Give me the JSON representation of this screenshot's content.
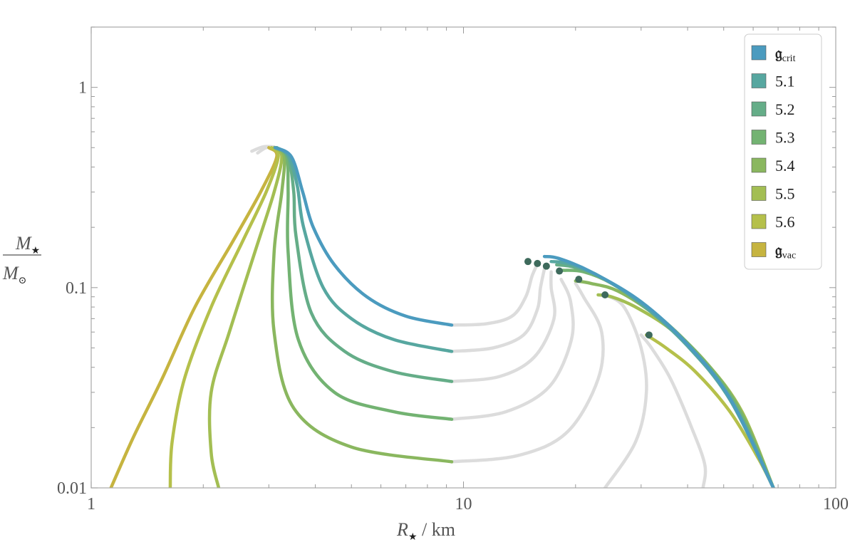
{
  "chart_data": {
    "type": "line",
    "title": "",
    "xlabel": {
      "symbol": "R",
      "sub": "★",
      "unit": " / km"
    },
    "ylabel": {
      "num": "M",
      "num_sub": "★",
      "den": "M",
      "den_sub": "⊙"
    },
    "xscale": "log",
    "yscale": "log",
    "xlim": [
      1,
      100
    ],
    "ylim": [
      0.01,
      2
    ],
    "grid": false,
    "legend_position": "top-right",
    "x_ticks": [
      {
        "value": 1,
        "label": "1"
      },
      {
        "value": 10,
        "label": "10"
      },
      {
        "value": 100,
        "label": "100"
      }
    ],
    "y_ticks": [
      {
        "value": 0.01,
        "label": "0.01"
      },
      {
        "value": 0.1,
        "label": "0.1"
      },
      {
        "value": 1,
        "label": "1"
      }
    ],
    "unstable_color": "#dcdcdc",
    "marker_color": "#3e6a5c",
    "series": [
      {
        "name": "crit",
        "name_prefix": "𝔤",
        "color": "#4b9bbf",
        "stable_left": [
          [
            3.12,
            0.5
          ],
          [
            3.45,
            0.45
          ],
          [
            3.7,
            0.3
          ],
          [
            3.95,
            0.2
          ],
          [
            4.5,
            0.13
          ],
          [
            5.5,
            0.09
          ],
          [
            7,
            0.072
          ],
          [
            9.3,
            0.065
          ]
        ],
        "unstable_mid": [
          [
            9.3,
            0.065
          ],
          [
            11.5,
            0.066
          ],
          [
            13.5,
            0.072
          ],
          [
            14.7,
            0.09
          ],
          [
            15.3,
            0.115
          ],
          [
            15.9,
            0.134
          ]
        ],
        "stable_right": [
          [
            16.5,
            0.143
          ],
          [
            18,
            0.14
          ],
          [
            22,
            0.12
          ],
          [
            30,
            0.085
          ],
          [
            40,
            0.052
          ],
          [
            52,
            0.028
          ],
          [
            68,
            0.01
          ]
        ],
        "marker": [
          14.9,
          0.135
        ]
      },
      {
        "name": "5.1",
        "color": "#57a7a0",
        "stable_left": [
          [
            3.15,
            0.5
          ],
          [
            3.4,
            0.45
          ],
          [
            3.58,
            0.32
          ],
          [
            3.72,
            0.2
          ],
          [
            4.2,
            0.1
          ],
          [
            5,
            0.07
          ],
          [
            6.5,
            0.055
          ],
          [
            9.3,
            0.048
          ]
        ],
        "unstable_mid": [
          [
            9.3,
            0.048
          ],
          [
            12,
            0.05
          ],
          [
            14.5,
            0.058
          ],
          [
            15.8,
            0.078
          ],
          [
            16.1,
            0.1
          ],
          [
            16.5,
            0.124
          ]
        ],
        "stable_right": [
          [
            17.2,
            0.135
          ],
          [
            19,
            0.132
          ],
          [
            23,
            0.115
          ],
          [
            30,
            0.083
          ],
          [
            40,
            0.051
          ],
          [
            52,
            0.0275
          ],
          [
            68,
            0.01
          ]
        ],
        "marker": [
          15.8,
          0.132
        ]
      },
      {
        "name": "5.2",
        "color": "#65ad88",
        "stable_left": [
          [
            3.15,
            0.5
          ],
          [
            3.38,
            0.45
          ],
          [
            3.5,
            0.3
          ],
          [
            3.55,
            0.18
          ],
          [
            3.9,
            0.075
          ],
          [
            4.8,
            0.048
          ],
          [
            6.5,
            0.038
          ],
          [
            9.3,
            0.034
          ]
        ],
        "unstable_mid": [
          [
            9.3,
            0.034
          ],
          [
            12.5,
            0.036
          ],
          [
            15.5,
            0.045
          ],
          [
            17.5,
            0.07
          ],
          [
            17.2,
            0.1
          ],
          [
            17.2,
            0.12
          ]
        ],
        "stable_right": [
          [
            17.8,
            0.13
          ],
          [
            20,
            0.126
          ],
          [
            24,
            0.11
          ],
          [
            31,
            0.08
          ],
          [
            41,
            0.049
          ],
          [
            53,
            0.0265
          ],
          [
            68,
            0.01
          ]
        ],
        "marker": [
          16.7,
          0.128
        ]
      },
      {
        "name": "5.3",
        "color": "#73b372",
        "stable_left": [
          [
            3.15,
            0.5
          ],
          [
            3.35,
            0.45
          ],
          [
            3.38,
            0.3
          ],
          [
            3.38,
            0.15
          ],
          [
            3.6,
            0.055
          ],
          [
            4.5,
            0.03
          ],
          [
            6.5,
            0.024
          ],
          [
            9.3,
            0.022
          ]
        ],
        "unstable_mid": [
          [
            9.3,
            0.022
          ],
          [
            13,
            0.024
          ],
          [
            17,
            0.032
          ],
          [
            19.5,
            0.055
          ],
          [
            19.4,
            0.085
          ],
          [
            18.3,
            0.11
          ]
        ],
        "stable_right": [
          [
            18.5,
            0.122
          ],
          [
            21,
            0.12
          ],
          [
            25,
            0.105
          ],
          [
            32,
            0.077
          ],
          [
            42,
            0.048
          ],
          [
            54,
            0.026
          ],
          [
            68,
            0.01
          ]
        ],
        "marker": [
          18.1,
          0.121
        ]
      },
      {
        "name": "5.4",
        "color": "#8ab75f",
        "stable_left": [
          [
            3.12,
            0.5
          ],
          [
            3.3,
            0.45
          ],
          [
            3.25,
            0.3
          ],
          [
            3.1,
            0.15
          ],
          [
            3.1,
            0.06
          ],
          [
            3.5,
            0.025
          ],
          [
            5,
            0.016
          ],
          [
            9.3,
            0.0135
          ]
        ],
        "unstable_mid": [
          [
            9.3,
            0.0135
          ],
          [
            14,
            0.0145
          ],
          [
            19,
            0.019
          ],
          [
            23,
            0.035
          ],
          [
            23.5,
            0.06
          ],
          [
            21,
            0.09
          ],
          [
            20,
            0.105
          ]
        ],
        "stable_right": [
          [
            20,
            0.108
          ],
          [
            22,
            0.105
          ],
          [
            26,
            0.096
          ],
          [
            33,
            0.072
          ],
          [
            43,
            0.046
          ],
          [
            55,
            0.025
          ],
          [
            68,
            0.01
          ]
        ],
        "marker": [
          20.4,
          0.11
        ]
      },
      {
        "name": "5.5",
        "color": "#a3be53",
        "stable_left": [
          [
            3.1,
            0.5
          ],
          [
            3.25,
            0.45
          ],
          [
            3.1,
            0.3
          ],
          [
            2.75,
            0.15
          ],
          [
            2.35,
            0.06
          ],
          [
            2.1,
            0.03
          ],
          [
            2.1,
            0.015
          ],
          [
            2.2,
            0.01
          ]
        ],
        "unstable_mid": [
          [
            24,
            0.01
          ],
          [
            29,
            0.017
          ],
          [
            31,
            0.03
          ],
          [
            30,
            0.05
          ],
          [
            27,
            0.08
          ],
          [
            24,
            0.092
          ]
        ],
        "stable_right": [
          [
            23,
            0.092
          ],
          [
            25,
            0.09
          ],
          [
            29,
            0.08
          ],
          [
            36,
            0.062
          ],
          [
            45,
            0.042
          ],
          [
            56,
            0.024
          ],
          [
            68,
            0.01
          ]
        ],
        "marker": [
          24,
          0.092
        ]
      },
      {
        "name": "5.6",
        "color": "#b5c04b",
        "stable_left": [
          [
            3.05,
            0.5
          ],
          [
            3.18,
            0.45
          ],
          [
            2.95,
            0.3
          ],
          [
            2.55,
            0.17
          ],
          [
            2.1,
            0.08
          ],
          [
            1.78,
            0.035
          ],
          [
            1.65,
            0.017
          ],
          [
            1.63,
            0.01
          ]
        ],
        "unstable_mid": [
          [
            44,
            0.01
          ],
          [
            44.5,
            0.013
          ],
          [
            41,
            0.02
          ],
          [
            36,
            0.035
          ],
          [
            32,
            0.05
          ],
          [
            30,
            0.058
          ]
        ],
        "stable_right": [
          [
            31,
            0.058
          ],
          [
            35,
            0.05
          ],
          [
            42,
            0.038
          ],
          [
            52,
            0.024
          ],
          [
            62,
            0.014
          ],
          [
            68,
            0.01
          ]
        ],
        "marker": [
          31.5,
          0.058
        ]
      },
      {
        "name": "vac",
        "name_prefix": "𝔤",
        "color": "#c6b440",
        "stable_left": [
          [
            3.0,
            0.5
          ],
          [
            3.15,
            0.45
          ],
          [
            2.85,
            0.3
          ],
          [
            2.4,
            0.17
          ],
          [
            1.9,
            0.08
          ],
          [
            1.55,
            0.035
          ],
          [
            1.3,
            0.018
          ],
          [
            1.13,
            0.01
          ]
        ],
        "unstable_mid": [],
        "stable_right": [],
        "marker": null
      }
    ],
    "unstable_caps": [
      [
        [
          2.7,
          0.48
        ],
        [
          2.9,
          0.505
        ],
        [
          3.1,
          0.505
        ]
      ],
      [
        [
          2.8,
          0.47
        ],
        [
          2.95,
          0.5
        ],
        [
          3.12,
          0.5
        ]
      ]
    ]
  }
}
